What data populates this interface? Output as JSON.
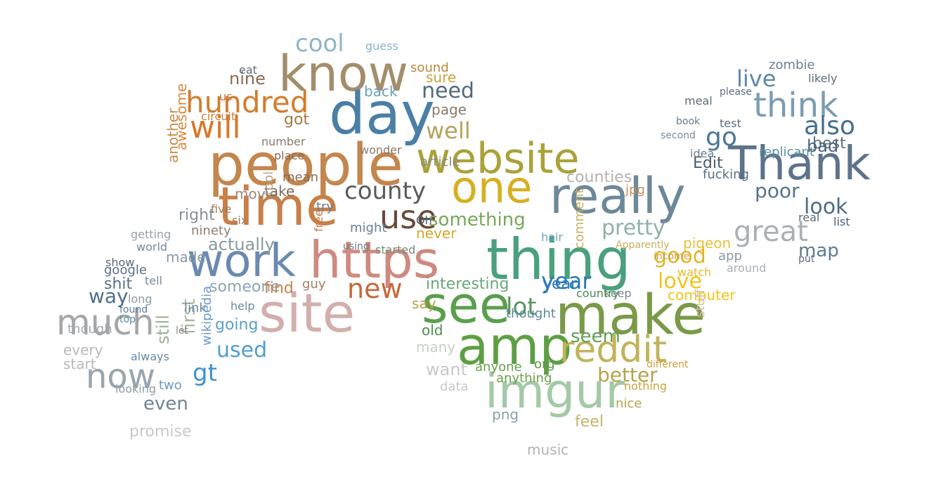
{
  "words": [
    {
      "text": "know",
      "color": "#a38d6b"
    },
    {
      "text": "day",
      "color": "#4a7fa6"
    },
    {
      "text": "people",
      "color": "#c3864d"
    },
    {
      "text": "time",
      "color": "#c97f48"
    },
    {
      "text": "website",
      "color": "#aaa23a"
    },
    {
      "text": "one",
      "color": "#d6b022"
    },
    {
      "text": "really",
      "color": "#6d8898"
    },
    {
      "text": "Thank",
      "color": "#5e738a"
    },
    {
      "text": "think",
      "color": "#7d9cb0"
    },
    {
      "text": "https",
      "color": "#cf8a80"
    },
    {
      "text": "thing",
      "color": "#49a07d"
    },
    {
      "text": "work",
      "color": "#6b8ab0"
    },
    {
      "text": "site",
      "color": "#d2afad"
    },
    {
      "text": "see",
      "color": "#5a9f4e"
    },
    {
      "text": "make",
      "color": "#7a9a48"
    },
    {
      "text": "amp",
      "color": "#5e9f44"
    },
    {
      "text": "imgur",
      "color": "#a4c9a7"
    },
    {
      "text": "reddit",
      "color": "#c2b35a"
    },
    {
      "text": "hundred",
      "color": "#d47c2d"
    },
    {
      "text": "will",
      "color": "#d9772a"
    },
    {
      "text": "much",
      "color": "#a6a6a6"
    },
    {
      "text": "now",
      "color": "#9aa4ad"
    },
    {
      "text": "great",
      "color": "#a9b0b6"
    },
    {
      "text": "use",
      "color": "#6b4a3a"
    },
    {
      "text": "county",
      "color": "#5a5a5a"
    },
    {
      "text": "new",
      "color": "#c7673a"
    },
    {
      "text": "cool",
      "color": "#8fb5c6"
    },
    {
      "text": "need",
      "color": "#4f6a7d"
    },
    {
      "text": "well",
      "color": "#b5a25c"
    },
    {
      "text": "pretty",
      "color": "#8fb2ab"
    },
    {
      "text": "also",
      "color": "#446f90"
    },
    {
      "text": "go",
      "color": "#4a7897"
    },
    {
      "text": "live",
      "color": "#5b87a8"
    },
    {
      "text": "poor",
      "color": "#587389"
    },
    {
      "text": "look",
      "color": "#4e6d86"
    },
    {
      "text": "map",
      "color": "#5d7b92"
    },
    {
      "text": "good",
      "color": "#e0b526"
    },
    {
      "text": "love",
      "color": "#f0c419"
    },
    {
      "text": "lot",
      "color": "#5a9462"
    },
    {
      "text": "year",
      "color": "#2c7bb6"
    },
    {
      "text": "seem",
      "color": "#5f9f55"
    },
    {
      "text": "better",
      "color": "#b7a34c"
    },
    {
      "text": "way",
      "color": "#4f6f8b"
    },
    {
      "text": "shit",
      "color": "#5a7187"
    },
    {
      "text": "first",
      "color": "#a8b7a3"
    },
    {
      "text": "still",
      "color": "#9db094"
    },
    {
      "text": "used",
      "color": "#4f9fd0"
    },
    {
      "text": "gt",
      "color": "#3d93c8"
    },
    {
      "text": "even",
      "color": "#6f8596"
    },
    {
      "text": "promise",
      "color": "#c8c8c8"
    },
    {
      "text": "something",
      "color": "#78a85a"
    },
    {
      "text": "interesting",
      "color": "#6aa77a"
    },
    {
      "text": "counties",
      "color": "#b9b1ad"
    },
    {
      "text": "awesome",
      "color": "#d88a3e"
    },
    {
      "text": "another",
      "color": "#c98a4a"
    },
    {
      "text": "nine",
      "color": "#8a6d50"
    },
    {
      "text": "back",
      "color": "#6a9fb8"
    },
    {
      "text": "got",
      "color": "#a07a42"
    },
    {
      "text": "movie",
      "color": "#a08878"
    },
    {
      "text": "take",
      "color": "#7e6b58"
    },
    {
      "text": "Edit",
      "color": "#4a5d70"
    },
    {
      "text": "fucking",
      "color": "#5a6e7e"
    },
    {
      "text": "best",
      "color": "#5a6e7e"
    },
    {
      "text": "bad",
      "color": "#4d6679"
    },
    {
      "text": "idea",
      "color": "#6a7e8e"
    },
    {
      "text": "zombie",
      "color": "#6a8090"
    },
    {
      "text": "replicant",
      "color": "#5a8fa0"
    },
    {
      "text": "actually",
      "color": "#8a9a9f"
    },
    {
      "text": "someone",
      "color": "#8fa4b3"
    },
    {
      "text": "made",
      "color": "#8a9aa8"
    },
    {
      "text": "find",
      "color": "#c8824a"
    },
    {
      "text": "say",
      "color": "#b7a34c"
    },
    {
      "text": "going",
      "color": "#5a9fc8"
    },
    {
      "text": "anyone",
      "color": "#66a04a"
    },
    {
      "text": "org",
      "color": "#5a9a4a"
    },
    {
      "text": "want",
      "color": "#c9c9c9"
    },
    {
      "text": "many",
      "color": "#c8d0c8"
    },
    {
      "text": "old",
      "color": "#4b8f4b"
    },
    {
      "text": "feel",
      "color": "#c8b26a"
    },
    {
      "text": "music",
      "color": "#b3b3b3"
    },
    {
      "text": "nice",
      "color": "#b7a34c"
    },
    {
      "text": "computer",
      "color": "#f2c518"
    },
    {
      "text": "pigeon",
      "color": "#e8c03a"
    },
    {
      "text": "watch",
      "color": "#e6b92a"
    },
    {
      "text": "stuff",
      "color": "#d0c0a0"
    },
    {
      "text": "png",
      "color": "#8aa0a8"
    },
    {
      "text": "data",
      "color": "#c8c8c8"
    },
    {
      "text": "every",
      "color": "#b8b8b8"
    },
    {
      "text": "though",
      "color": "#a0a8b0"
    },
    {
      "text": "start",
      "color": "#b8b8b8"
    },
    {
      "text": "right",
      "color": "#8a8f94"
    },
    {
      "text": "ninety",
      "color": "#8a7f74"
    },
    {
      "text": "link",
      "color": "#6a8aa0"
    },
    {
      "text": "guy",
      "color": "#a08060"
    },
    {
      "text": "never",
      "color": "#d4a72c"
    },
    {
      "text": "page",
      "color": "#8a7a6a"
    },
    {
      "text": "sure",
      "color": "#c8a23a"
    },
    {
      "text": "sound",
      "color": "#b88a3a"
    },
    {
      "text": "guess",
      "color": "#8ab4c8"
    },
    {
      "text": "free",
      "color": "#c87a4a"
    },
    {
      "text": "tool",
      "color": "#b8a890"
    },
    {
      "text": "six",
      "color": "#a08060"
    },
    {
      "text": "five",
      "color": "#9a7a5a"
    },
    {
      "text": "app",
      "color": "#8a9aa8"
    },
    {
      "text": "around",
      "color": "#a8b0b8"
    },
    {
      "text": "list",
      "color": "#4a6078"
    },
    {
      "text": "comment",
      "color": "#c8b060"
    },
    {
      "text": "keep",
      "color": "#7a8a94"
    },
    {
      "text": "country",
      "color": "#4a8a5a"
    },
    {
      "text": "thought",
      "color": "#5a8a9a"
    },
    {
      "text": "anything",
      "color": "#6aa04a"
    },
    {
      "text": "nothing",
      "color": "#c8a440"
    },
    {
      "text": "jpg",
      "color": "#c89060"
    },
    {
      "text": "hair",
      "color": "#6aa0c0"
    },
    {
      "text": "article",
      "color": "#8a8a7a"
    },
    {
      "text": "mean",
      "color": "#8a6a50"
    },
    {
      "text": "try",
      "color": "#6a7f94"
    },
    {
      "text": "might",
      "color": "#6a7f94"
    },
    {
      "text": "started",
      "color": "#7a8a7a"
    },
    {
      "text": "Oh",
      "color": "#4a6078"
    },
    {
      "text": "google",
      "color": "#5a7087"
    },
    {
      "text": "show",
      "color": "#5a6a7a"
    },
    {
      "text": "tell",
      "color": "#7a8a9a"
    },
    {
      "text": "long",
      "color": "#8a9aa8"
    },
    {
      "text": "two",
      "color": "#6a9ac0"
    },
    {
      "text": "always",
      "color": "#6a8aa0"
    },
    {
      "text": "looking",
      "color": "#8a9aa8"
    },
    {
      "text": "wikipedia",
      "color": "#6a9ac8"
    },
    {
      "text": "let",
      "color": "#8a8a8a"
    },
    {
      "text": "help",
      "color": "#6a8a9a"
    },
    {
      "text": "top",
      "color": "#5a8aa8"
    },
    {
      "text": "found",
      "color": "#5a7a9a"
    },
    {
      "text": "world",
      "color": "#7a8a9a"
    },
    {
      "text": "getting",
      "color": "#9aa0a8"
    },
    {
      "text": "circuit",
      "color": "#d0803a"
    },
    {
      "text": "us",
      "color": "#c87a3a"
    },
    {
      "text": "eat",
      "color": "#5a6e7e"
    },
    {
      "text": "number",
      "color": "#8a7a6a"
    },
    {
      "text": "place",
      "color": "#8a6a50"
    },
    {
      "text": "wonder",
      "color": "#8a7a6a"
    },
    {
      "text": "using",
      "color": "#6a7a8a"
    },
    {
      "text": "meal",
      "color": "#5a6a7a"
    },
    {
      "text": "test",
      "color": "#5a6e7e"
    },
    {
      "text": "please",
      "color": "#5a6e7e"
    },
    {
      "text": "book",
      "color": "#6a7a8a"
    },
    {
      "text": "second",
      "color": "#7a8a9a"
    },
    {
      "text": "real",
      "color": "#5a6a7a"
    },
    {
      "text": "put",
      "color": "#5a6a7a"
    },
    {
      "text": "likely",
      "color": "#5a6e7e"
    },
    {
      "text": "Apparently",
      "color": "#c8b060"
    },
    {
      "text": "income",
      "color": "#c8a040"
    },
    {
      "text": "different",
      "color": "#c8a040"
    },
    {
      "text": "year",
      "color": "#2c7bb6"
    }
  ]
}
